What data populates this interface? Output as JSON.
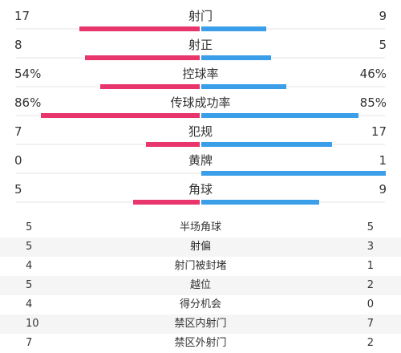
{
  "colors": {
    "home": "#e8356b",
    "away": "#3a9ee8"
  },
  "bar_stats": [
    {
      "name": "射门",
      "home": "17",
      "away": "9",
      "home_ratio": 0.65,
      "away_ratio": 0.35
    },
    {
      "name": "射正",
      "home": "8",
      "away": "5",
      "home_ratio": 0.62,
      "away_ratio": 0.38
    },
    {
      "name": "控球率",
      "home": "54%",
      "away": "46%",
      "home_ratio": 0.54,
      "away_ratio": 0.46
    },
    {
      "name": "传球成功率",
      "home": "86%",
      "away": "85%",
      "home_ratio": 0.86,
      "away_ratio": 0.85
    },
    {
      "name": "犯规",
      "home": "7",
      "away": "17",
      "home_ratio": 0.29,
      "away_ratio": 0.71
    },
    {
      "name": "黄牌",
      "home": "0",
      "away": "1",
      "home_ratio": 0.0,
      "away_ratio": 1.0
    },
    {
      "name": "角球",
      "home": "5",
      "away": "9",
      "home_ratio": 0.36,
      "away_ratio": 0.64
    }
  ],
  "table_stats": [
    {
      "name": "半场角球",
      "home": "5",
      "away": "5"
    },
    {
      "name": "射偏",
      "home": "5",
      "away": "3"
    },
    {
      "name": "射门被封堵",
      "home": "4",
      "away": "1"
    },
    {
      "name": "越位",
      "home": "5",
      "away": "2"
    },
    {
      "name": "得分机会",
      "home": "4",
      "away": "0"
    },
    {
      "name": "禁区内射门",
      "home": "10",
      "away": "7"
    },
    {
      "name": "禁区外射门",
      "home": "7",
      "away": "2"
    }
  ]
}
